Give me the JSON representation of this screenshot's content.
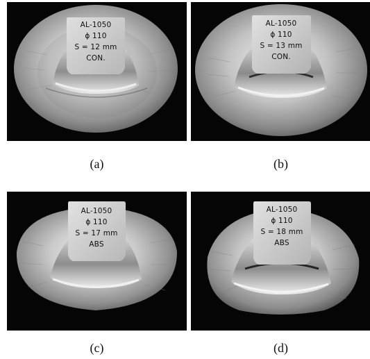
{
  "panels": [
    {
      "caption": "(a)",
      "lines": [
        "AL-1050",
        "ϕ 110",
        "S = 12 mm",
        "CON."
      ]
    },
    {
      "caption": "(b)",
      "lines": [
        "AL-1050",
        "ϕ 110",
        "S = 13 mm",
        "CON."
      ]
    },
    {
      "caption": "(c)",
      "lines": [
        "AL-1050",
        "ϕ 110",
        "S = 17 mm",
        "ABS"
      ]
    },
    {
      "caption": "(d)",
      "lines": [
        "AL-1050",
        "ϕ 110",
        "S = 18 mm",
        "ABS"
      ]
    }
  ]
}
